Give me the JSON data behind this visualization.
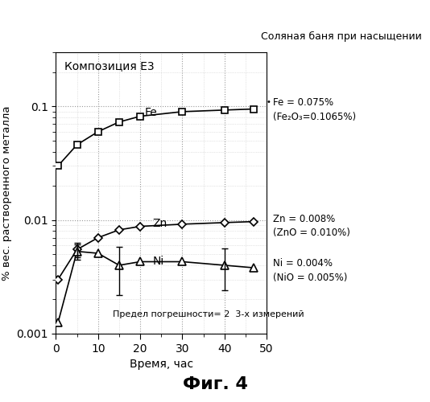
{
  "title_top": "Соляная баня при насыщении",
  "label_composition": "Композиция Е3",
  "xlabel": "Время, час",
  "ylabel": "% вес. растворенного металла",
  "fig_label": "Фиг. 4",
  "error_note": "Предел погрешности= 2  3-х измерений",
  "xlim": [
    0,
    50
  ],
  "ylim_log": [
    0.001,
    0.3
  ],
  "Fe_x": [
    0.5,
    5,
    10,
    15,
    20,
    30,
    40,
    47
  ],
  "Fe_y": [
    0.03,
    0.046,
    0.06,
    0.073,
    0.082,
    0.09,
    0.093,
    0.095
  ],
  "Fe_label": "Fe",
  "Fe_annotation_1": "Fe = 0.075%",
  "Fe_annotation_2": "(Fe₂O₃=0.1065%)",
  "Zn_x": [
    0.5,
    5,
    10,
    15,
    20,
    30,
    40,
    47
  ],
  "Zn_y": [
    0.003,
    0.0055,
    0.007,
    0.0082,
    0.0088,
    0.0092,
    0.0095,
    0.0097
  ],
  "Zn_label": "Zn",
  "Zn_annotation_1": "Zn = 0.008%",
  "Zn_annotation_2": "(ZnO = 0.010%)",
  "Ni_x": [
    0.5,
    5,
    10,
    15,
    20,
    30,
    40,
    47
  ],
  "Ni_y": [
    0.00125,
    0.0053,
    0.0051,
    0.004,
    0.0043,
    0.0043,
    0.004,
    0.0038
  ],
  "Ni_yerr": [
    0.0,
    0.0008,
    0.0,
    0.0018,
    0.0,
    0.0,
    0.0016,
    0.0
  ],
  "Ni_label": "Ni",
  "Ni_annotation_1": "Ni = 0.004%",
  "Ni_annotation_2": "(NiO = 0.005%)",
  "Zn_yerr_idx": 1,
  "Zn_yerr_val": 0.0008,
  "bg_color": "#ffffff",
  "line_color": "#000000",
  "grid_color": "#999999"
}
